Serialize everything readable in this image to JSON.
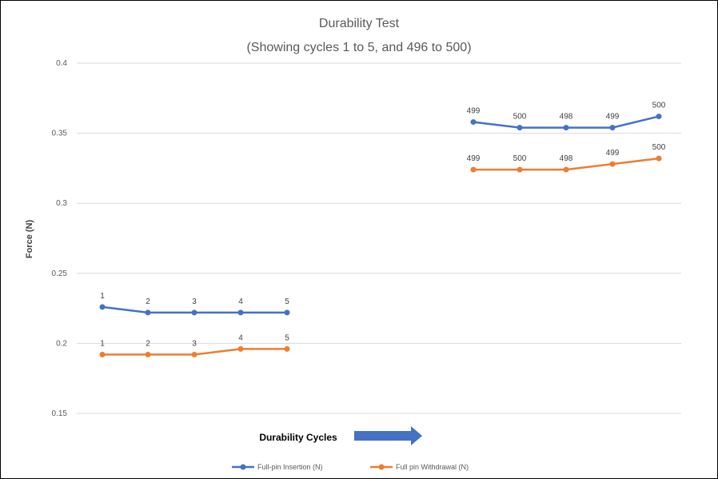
{
  "chart_data": {
    "type": "line",
    "title": "Durability Test",
    "subtitle": "(Showing cycles 1 to 5, and 496 to 500)",
    "xlabel": "Durability Cycles",
    "ylabel": "Force (N)",
    "ylim": [
      0.15,
      0.4
    ],
    "yticks": [
      0.4,
      0.35,
      0.3,
      0.25,
      0.2,
      0.15
    ],
    "grid": true,
    "legend_position": "bottom",
    "arrow_color": "#4472C4",
    "series": [
      {
        "name": "Full-pin Insertion (N)",
        "color": "#4472C4",
        "segments": [
          {
            "labels": [
              "1",
              "2",
              "3",
              "4",
              "5"
            ],
            "values": [
              0.226,
              0.222,
              0.222,
              0.222,
              0.222
            ]
          },
          {
            "labels": [
              "499",
              "500",
              "498",
              "499",
              "500"
            ],
            "values": [
              0.358,
              0.354,
              0.354,
              0.354,
              0.362
            ]
          }
        ]
      },
      {
        "name": "Full pin Withdrawal (N)",
        "color": "#ED7D31",
        "segments": [
          {
            "labels": [
              "1",
              "2",
              "3",
              "4",
              "5"
            ],
            "values": [
              0.192,
              0.192,
              0.192,
              0.196,
              0.196
            ]
          },
          {
            "labels": [
              "499",
              "500",
              "498",
              "499",
              "500"
            ],
            "values": [
              0.324,
              0.324,
              0.324,
              0.328,
              0.332
            ]
          }
        ]
      }
    ]
  }
}
